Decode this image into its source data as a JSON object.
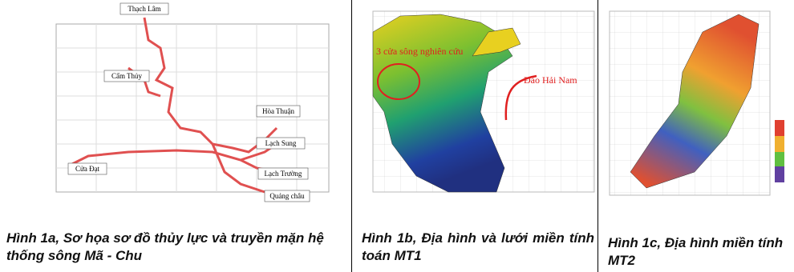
{
  "figures": [
    {
      "map_labels": [
        "Thạch Lâm",
        "Cẩm Thủy",
        "Hòa Thuận",
        "Lạch Sung",
        "Lạch Trường",
        "Quảng châu",
        "Cửa Đạt"
      ],
      "caption": "Hình 1a, Sơ họa sơ đồ thủy lực và truyền mặn hệ thống sông Mã - Chu"
    },
    {
      "map_labels": [
        "3 cửa sông nghiên cứu",
        "Đảo Hải Nam"
      ],
      "caption": "Hình 1b, Địa hình và lưới miền tính toán MT1"
    },
    {
      "caption": "Hình 1c, Địa hình miền tính MT2"
    }
  ]
}
